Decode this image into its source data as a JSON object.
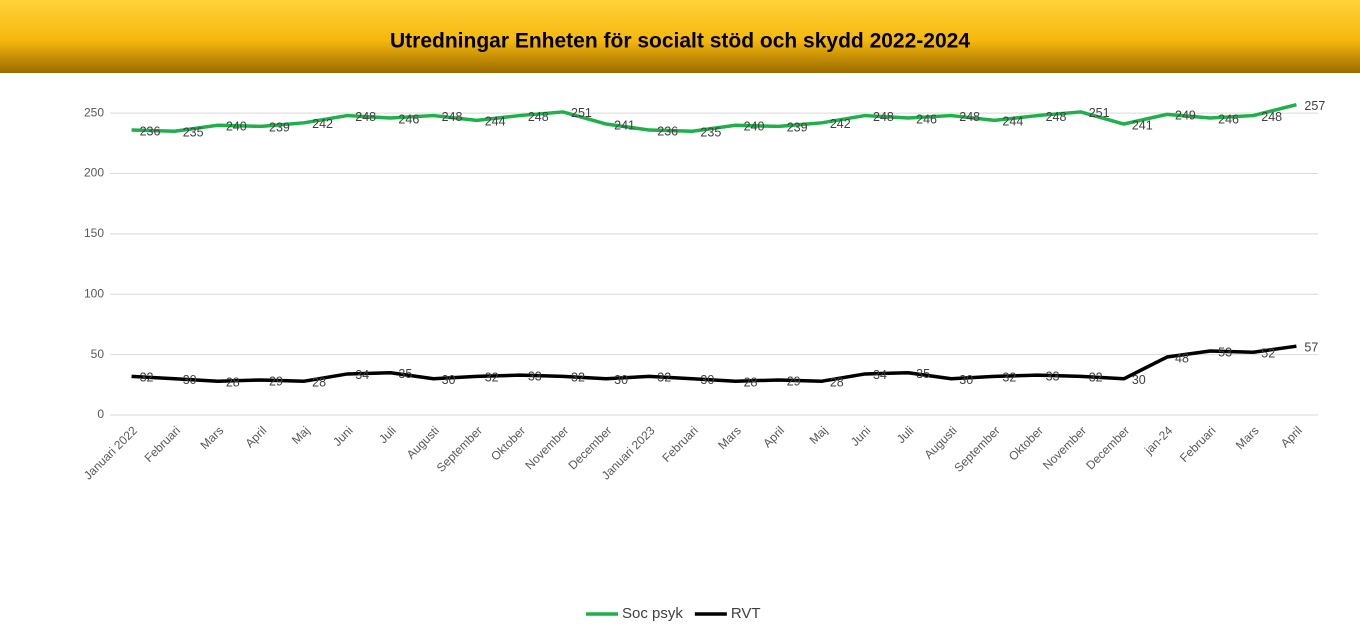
{
  "chart_data": {
    "type": "line",
    "title": "Utredningar Enheten för socialt stöd och skydd 2022-2024",
    "categories": [
      "Januari 2022",
      "Februari",
      "Mars",
      "April",
      "Maj",
      "Juni",
      "Juli",
      "Augusti",
      "September",
      "Oktober",
      "November",
      "December",
      "Januari 2023",
      "Februari",
      "Mars",
      "April",
      "Maj",
      "Juni",
      "Juli",
      "Augusti",
      "September",
      "Oktober",
      "November",
      "December",
      "jan-24",
      "Februari",
      "Mars",
      "April"
    ],
    "series": [
      {
        "name": "Soc psyk",
        "color": "#1fb04c",
        "values": [
          236,
          235,
          240,
          239,
          242,
          248,
          246,
          248,
          244,
          248,
          251,
          241,
          236,
          235,
          240,
          239,
          242,
          248,
          246,
          248,
          244,
          248,
          251,
          241,
          249,
          246,
          248,
          257
        ]
      },
      {
        "name": "RVT",
        "color": "#000000",
        "values": [
          32,
          30,
          28,
          29,
          28,
          34,
          35,
          30,
          32,
          33,
          32,
          30,
          32,
          30,
          28,
          29,
          28,
          34,
          35,
          30,
          32,
          33,
          32,
          30,
          48,
          53,
          52,
          57
        ]
      }
    ],
    "ylim": [
      0,
      270
    ],
    "yticks": [
      0,
      50,
      100,
      150,
      200,
      250
    ],
    "grid": true,
    "legend": "bottom"
  }
}
